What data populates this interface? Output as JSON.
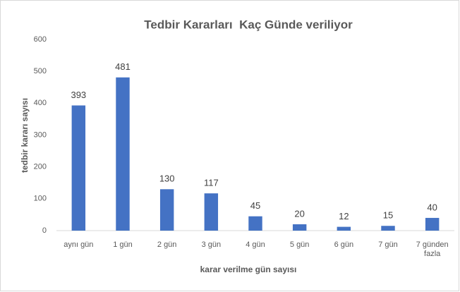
{
  "chart_data": {
    "type": "bar",
    "title": "Tedbir Kararları  Kaç Günde veriliyor",
    "x_label": "karar verilme gün sayısı",
    "y_label": "tedbir kararı sayısı",
    "categories": [
      "aynı gün",
      "1 gün",
      "2 gün",
      "3 gün",
      "4 gün",
      "5 gün",
      "6 gün",
      "7 gün",
      "7 günden fazla"
    ],
    "values": [
      393,
      481,
      130,
      117,
      45,
      20,
      12,
      15,
      40
    ],
    "color": "#4472c4",
    "ylim": [
      0,
      600
    ],
    "yticks": [
      0,
      100,
      200,
      300,
      400,
      500,
      600
    ],
    "grid": false,
    "data_labels": true
  }
}
